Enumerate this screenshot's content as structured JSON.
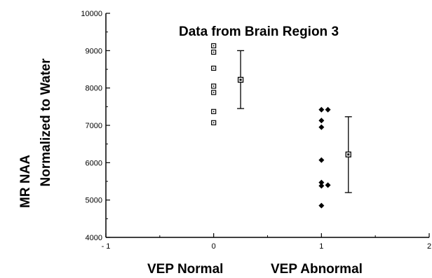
{
  "chart_data": {
    "type": "scatter",
    "title": "Data from Brain Region 3",
    "ylabel_line1": "MR NAA",
    "ylabel_line2": "Normalized to Water",
    "xlabel_left": "VEP Normal",
    "xlabel_right": "VEP Abnormal",
    "xlim": [
      -1,
      2
    ],
    "ylim": [
      4000,
      10000
    ],
    "x_ticks": [
      -1,
      0,
      1,
      2
    ],
    "x_tick_labels": [
      "- 1",
      "0",
      "1",
      "2"
    ],
    "y_ticks": [
      4000,
      5000,
      6000,
      7000,
      8000,
      9000,
      10000
    ],
    "y_tick_labels": [
      "4000",
      "5000",
      "6000",
      "7000",
      "8000",
      "9000",
      "10000"
    ],
    "grid": false,
    "series": [
      {
        "marker": "open-square",
        "points": [
          {
            "x": 0,
            "y": 9130
          },
          {
            "x": 0,
            "y": 8960
          },
          {
            "x": 0,
            "y": 8530
          },
          {
            "x": 0,
            "y": 8050
          },
          {
            "x": 0,
            "y": 7880
          },
          {
            "x": 0,
            "y": 7370
          },
          {
            "x": 0,
            "y": 7070
          }
        ]
      },
      {
        "marker": "filled-diamond",
        "points": [
          {
            "x": 1,
            "y": 7420
          },
          {
            "x": 1.06,
            "y": 7420
          },
          {
            "x": 1,
            "y": 7130
          },
          {
            "x": 1,
            "y": 6950
          },
          {
            "x": 1,
            "y": 6070
          },
          {
            "x": 1,
            "y": 5470
          },
          {
            "x": 1,
            "y": 5380
          },
          {
            "x": 1.06,
            "y": 5400
          },
          {
            "x": 1,
            "y": 4850
          }
        ]
      }
    ],
    "error_bars": [
      {
        "x": 0.25,
        "mean": 8220,
        "low": 7450,
        "high": 9000
      },
      {
        "x": 1.25,
        "mean": 6220,
        "low": 5200,
        "high": 7230
      }
    ]
  }
}
